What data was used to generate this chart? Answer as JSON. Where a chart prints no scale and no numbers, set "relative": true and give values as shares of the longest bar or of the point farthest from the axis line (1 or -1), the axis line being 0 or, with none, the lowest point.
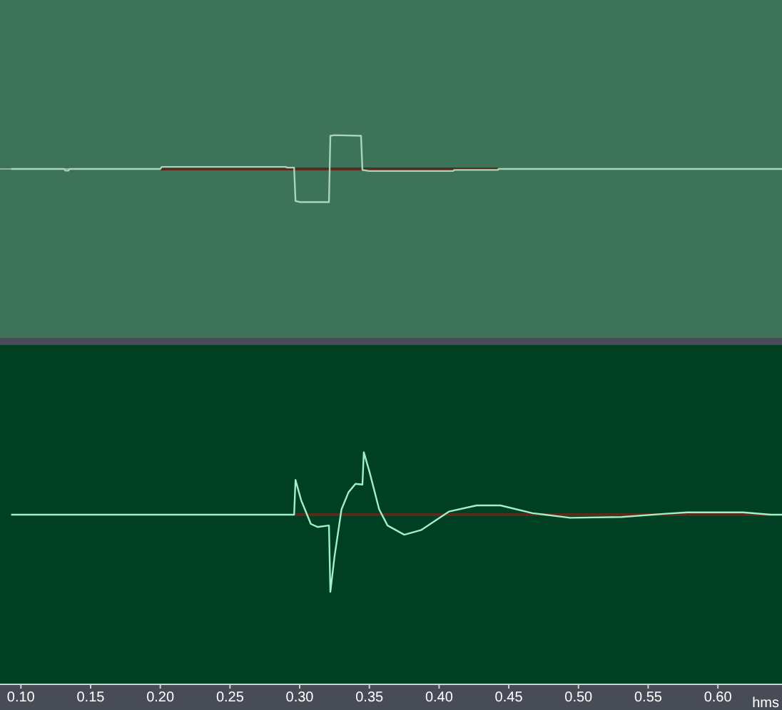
{
  "chart_data": [
    {
      "type": "line",
      "relative": true,
      "xlim": [
        0.085,
        0.646
      ],
      "tick_labels": false,
      "ref_lines": [
        {
          "axis": "y",
          "value": 0,
          "color": "#8fb0a0"
        }
      ],
      "series": [
        {
          "color": "#5a2a1c",
          "x": [
            0.2,
            0.442
          ],
          "values": [
            0,
            0
          ]
        },
        {
          "color": "#a8d4bc",
          "x": [
            0.093,
            0.131,
            0.132,
            0.134,
            0.135,
            0.2,
            0.201,
            0.29,
            0.291,
            0.296,
            0.297,
            0.3,
            0.321,
            0.322,
            0.325,
            0.344,
            0.345,
            0.35,
            0.41,
            0.411,
            0.442,
            0.443,
            0.646
          ],
          "values": [
            0,
            0,
            -0.05,
            -0.05,
            0,
            0,
            0.06,
            0.06,
            0.04,
            0.04,
            -0.95,
            -0.98,
            -0.98,
            0.98,
            1,
            0.98,
            -0.03,
            -0.06,
            -0.06,
            -0.03,
            -0.03,
            0,
            0
          ]
        }
      ]
    },
    {
      "type": "line",
      "relative": true,
      "xlim": [
        0.085,
        0.646
      ],
      "tick_labels": "x",
      "xlabel": "hms",
      "xticks": [
        {
          "value": 0.1,
          "label": "0.10"
        },
        {
          "value": 0.15,
          "label": "0.15"
        },
        {
          "value": 0.2,
          "label": "0.20"
        },
        {
          "value": 0.25,
          "label": "0.25"
        },
        {
          "value": 0.3,
          "label": "0.30"
        },
        {
          "value": 0.35,
          "label": "0.35"
        },
        {
          "value": 0.4,
          "label": "0.40"
        },
        {
          "value": 0.45,
          "label": "0.45"
        },
        {
          "value": 0.5,
          "label": "0.50"
        },
        {
          "value": 0.55,
          "label": "0.55"
        },
        {
          "value": 0.6,
          "label": "0.60"
        }
      ],
      "series": [
        {
          "color": "#5a2a1c",
          "x": [
            0.296,
            0.638
          ],
          "values": [
            0,
            0
          ]
        },
        {
          "color": "#a0f0c8",
          "x": [
            0.093,
            0.296,
            0.297,
            0.301,
            0.308,
            0.313,
            0.321,
            0.322,
            0.325,
            0.33,
            0.335,
            0.34,
            0.345,
            0.346,
            0.35,
            0.357,
            0.363,
            0.375,
            0.387,
            0.407,
            0.427,
            0.444,
            0.467,
            0.494,
            0.531,
            0.561,
            0.578,
            0.618,
            0.638,
            0.646
          ],
          "values": [
            0,
            0,
            0.45,
            0.19,
            -0.12,
            -0.16,
            -0.14,
            -1,
            -0.54,
            0.07,
            0.29,
            0.4,
            0.39,
            0.81,
            0.56,
            0.07,
            -0.14,
            -0.26,
            -0.2,
            0.04,
            0.12,
            0.12,
            0.02,
            -0.04,
            -0.03,
            0.01,
            0.03,
            0.03,
            0,
            0
          ]
        }
      ]
    }
  ]
}
